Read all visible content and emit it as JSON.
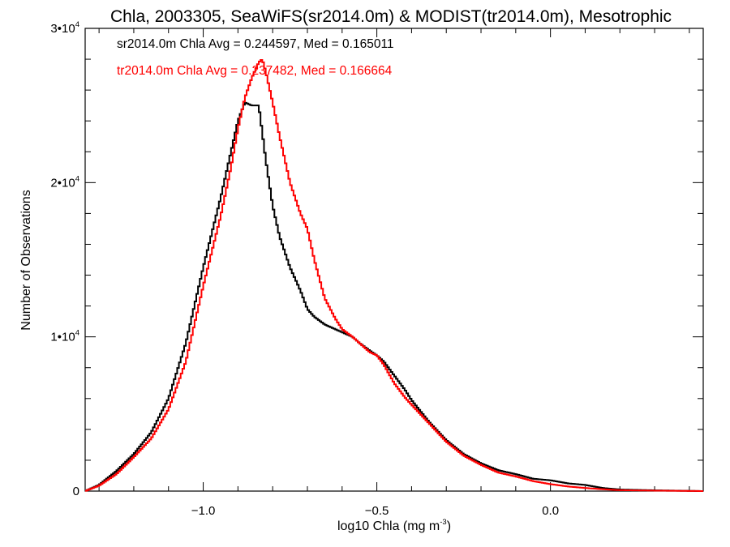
{
  "chart_data": {
    "type": "line",
    "style": "step-histogram",
    "title": "Chla, 2003305, SeaWiFS(sr2014.0m) & MODIST(tr2014.0m), Mesotrophic",
    "xlabel": "log10 Chla (mg m",
    "xlabel_sup": "-3",
    "xlabel_close": ")",
    "ylabel": "Number of Observations",
    "xlim": [
      -1.34,
      0.44
    ],
    "ylim": [
      0,
      30000
    ],
    "x_ticks": [
      {
        "value": -1.0,
        "label": "−1.0"
      },
      {
        "value": -0.5,
        "label": "−0.5"
      },
      {
        "value": 0.0,
        "label": "0.0"
      }
    ],
    "y_ticks": [
      {
        "value": 0,
        "base": "0",
        "exp": ""
      },
      {
        "value": 10000,
        "base": "1•10",
        "exp": "4"
      },
      {
        "value": 20000,
        "base": "2•10",
        "exp": "4"
      },
      {
        "value": 30000,
        "base": "3•10",
        "exp": "4"
      }
    ],
    "annotations": [
      {
        "text": "sr2014.0m Chla Avg = 0.244597, Med = 0.165011",
        "color": "#000000"
      },
      {
        "text": "tr2014.0m Chla Avg = 0.237482, Med = 0.166664",
        "color": "#ff0000"
      }
    ],
    "series": [
      {
        "color": "#000000",
        "x": [
          -1.34,
          -1.3,
          -1.25,
          -1.2,
          -1.15,
          -1.1,
          -1.05,
          -1.0,
          -0.95,
          -0.92,
          -0.9,
          -0.88,
          -0.86,
          -0.84,
          -0.82,
          -0.8,
          -0.78,
          -0.75,
          -0.72,
          -0.7,
          -0.68,
          -0.65,
          -0.62,
          -0.6,
          -0.57,
          -0.55,
          -0.52,
          -0.5,
          -0.48,
          -0.45,
          -0.42,
          -0.4,
          -0.35,
          -0.3,
          -0.25,
          -0.2,
          -0.15,
          -0.1,
          -0.05,
          0.0,
          0.05,
          0.1,
          0.15,
          0.2,
          0.3,
          0.44
        ],
        "y": [
          0,
          400,
          1300,
          2400,
          3800,
          6000,
          9600,
          14500,
          19000,
          22000,
          24000,
          25200,
          25000,
          25000,
          21500,
          18500,
          16500,
          14500,
          13000,
          11800,
          11300,
          10800,
          10500,
          10300,
          10000,
          9600,
          9100,
          8800,
          8400,
          7500,
          6600,
          5900,
          4500,
          3300,
          2400,
          1800,
          1350,
          1100,
          800,
          700,
          500,
          400,
          200,
          100,
          50,
          0
        ]
      },
      {
        "color": "#ff0000",
        "x": [
          -1.34,
          -1.3,
          -1.25,
          -1.2,
          -1.15,
          -1.1,
          -1.05,
          -1.0,
          -0.95,
          -0.92,
          -0.9,
          -0.88,
          -0.86,
          -0.84,
          -0.83,
          -0.82,
          -0.81,
          -0.8,
          -0.78,
          -0.75,
          -0.72,
          -0.7,
          -0.68,
          -0.65,
          -0.62,
          -0.6,
          -0.57,
          -0.55,
          -0.52,
          -0.5,
          -0.48,
          -0.45,
          -0.42,
          -0.4,
          -0.35,
          -0.3,
          -0.25,
          -0.2,
          -0.15,
          -0.1,
          -0.05,
          0.0,
          0.05,
          0.1,
          0.15,
          0.2,
          0.3,
          0.44
        ],
        "y": [
          0,
          350,
          1100,
          2200,
          3400,
          5300,
          8400,
          13300,
          17800,
          21000,
          23500,
          25500,
          26800,
          27800,
          28000,
          27200,
          26200,
          25200,
          23000,
          20000,
          18000,
          17000,
          15000,
          12500,
          11200,
          10500,
          10000,
          9600,
          9000,
          8800,
          8200,
          7000,
          6100,
          5600,
          4400,
          3200,
          2300,
          1700,
          1200,
          950,
          650,
          450,
          300,
          200,
          120,
          60,
          30,
          0
        ]
      }
    ]
  }
}
